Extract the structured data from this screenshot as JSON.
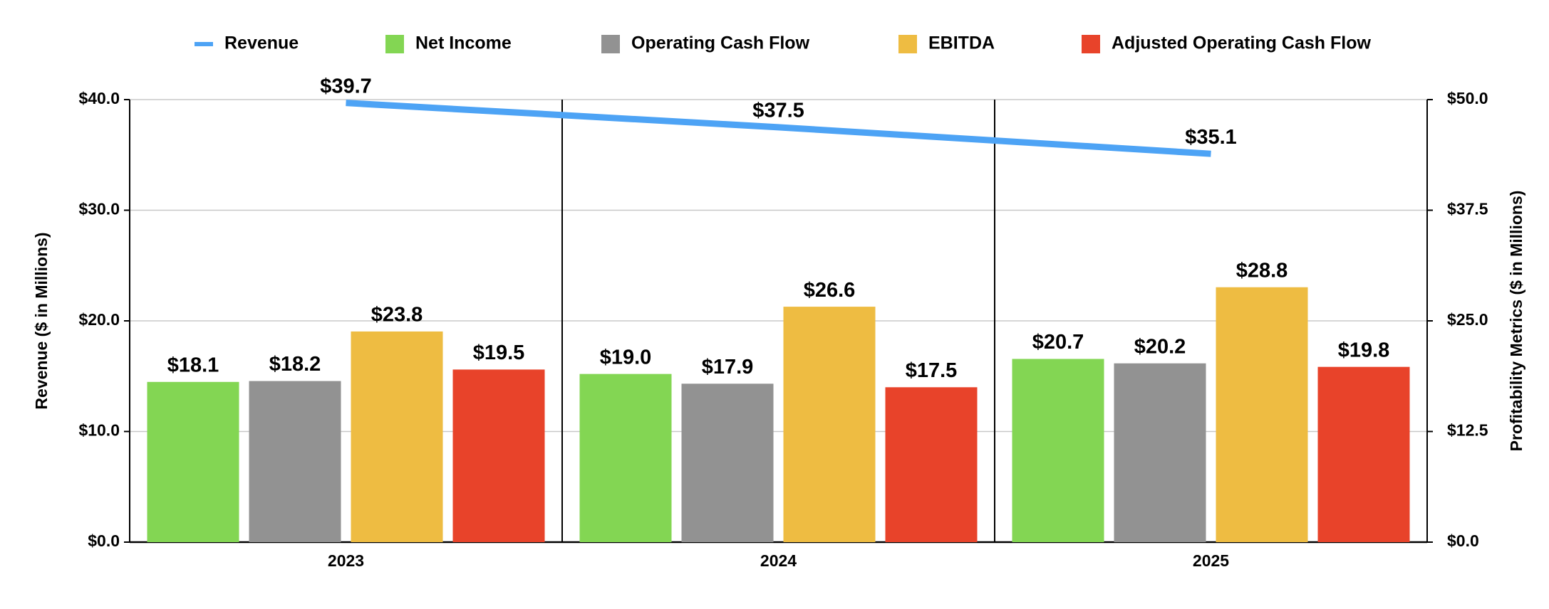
{
  "chart_data": {
    "type": "bar-line",
    "categories": [
      "2023",
      "2024",
      "2025"
    ],
    "y_label": "Revenue ($ in Millions)",
    "y2_label": "Profitability Metrics ($ in Millions)",
    "ylim": [
      0,
      40
    ],
    "yticks": [
      {
        "value": 0,
        "label": "$0.0"
      },
      {
        "value": 10,
        "label": "$10.0"
      },
      {
        "value": 20,
        "label": "$20.0"
      },
      {
        "value": 30,
        "label": "$30.0"
      },
      {
        "value": 40,
        "label": "$40.0"
      }
    ],
    "y2lim": [
      0,
      50
    ],
    "y2ticks": [
      {
        "value": 0,
        "label": "$0.0"
      },
      {
        "value": 12.5,
        "label": "$12.5"
      },
      {
        "value": 25,
        "label": "$25.0"
      },
      {
        "value": 37.5,
        "label": "$37.5"
      },
      {
        "value": 50,
        "label": "$50.0"
      }
    ],
    "grid": true,
    "legend": "top",
    "series": [
      {
        "name": "Revenue",
        "type": "line",
        "color": "#4da3f5",
        "values": [
          39.7,
          37.5,
          35.1
        ],
        "value_labels": [
          "$39.7",
          "$37.5",
          "$35.1"
        ]
      },
      {
        "name": "Net Income",
        "type": "bar",
        "axis": "y2",
        "color": "#83d653",
        "values": [
          18.1,
          19.0,
          20.7
        ],
        "value_labels": [
          "$18.1",
          "$19.0",
          "$20.7"
        ]
      },
      {
        "name": "Operating Cash Flow",
        "type": "bar",
        "axis": "y2",
        "color": "#929292",
        "values": [
          18.2,
          17.9,
          20.2
        ],
        "value_labels": [
          "$18.2",
          "$17.9",
          "$20.2"
        ]
      },
      {
        "name": "EBITDA",
        "type": "bar",
        "axis": "y2",
        "color": "#eebc42",
        "values": [
          23.8,
          26.6,
          28.8
        ],
        "value_labels": [
          "$23.8",
          "$26.6",
          "$28.8"
        ]
      },
      {
        "name": "Adjusted Operating Cash Flow",
        "type": "bar",
        "axis": "y2",
        "color": "#e8432a",
        "values": [
          19.5,
          17.5,
          19.8
        ],
        "value_labels": [
          "$19.5",
          "$17.5",
          "$19.8"
        ]
      }
    ]
  }
}
